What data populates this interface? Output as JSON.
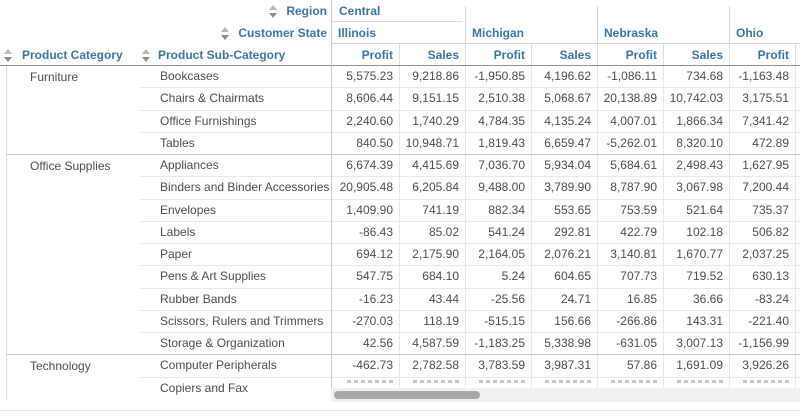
{
  "colors": {
    "header_text": "#3a77a9",
    "body_text": "#4e4e4e",
    "scrollbar_thumb": "#a8a8a8"
  },
  "header": {
    "region_label": "Region",
    "region_value": "Central",
    "customer_state_label": "Customer State",
    "product_category_label": "Product Category",
    "product_subcategory_label": "Product Sub-Category",
    "states": [
      "Illinois",
      "Michigan",
      "Nebraska",
      "Ohio"
    ],
    "measures": [
      "Profit",
      "Sales"
    ]
  },
  "table": {
    "groups": [
      {
        "category": "Furniture",
        "rows": [
          {
            "label": "Bookcases",
            "values": [
              "5,575.23",
              "9,218.86",
              "-1,950.85",
              "4,196.62",
              "-1,086.11",
              "734.68",
              "-1,163.48"
            ]
          },
          {
            "label": "Chairs & Chairmats",
            "values": [
              "8,606.44",
              "9,151.15",
              "2,510.38",
              "5,068.67",
              "20,138.89",
              "10,742.03",
              "3,175.51"
            ]
          },
          {
            "label": "Office Furnishings",
            "values": [
              "2,240.60",
              "1,740.29",
              "4,784.35",
              "4,135.24",
              "4,007.01",
              "1,866.34",
              "7,341.42"
            ]
          },
          {
            "label": "Tables",
            "values": [
              "840.50",
              "10,948.71",
              "1,819.43",
              "6,659.47",
              "-5,262.01",
              "8,320.10",
              "472.89"
            ]
          }
        ]
      },
      {
        "category": "Office Supplies",
        "rows": [
          {
            "label": "Appliances",
            "values": [
              "6,674.39",
              "4,415.69",
              "7,036.70",
              "5,934.04",
              "5,684.61",
              "2,498.43",
              "1,627.95"
            ]
          },
          {
            "label": "Binders and Binder Accessories",
            "values": [
              "20,905.48",
              "6,205.84",
              "9,488.00",
              "3,789.90",
              "8,787.90",
              "3,067.98",
              "7,200.44"
            ]
          },
          {
            "label": "Envelopes",
            "values": [
              "1,409.90",
              "741.19",
              "882.34",
              "553.65",
              "753.59",
              "521.64",
              "735.37"
            ]
          },
          {
            "label": "Labels",
            "values": [
              "-86.43",
              "85.02",
              "541.24",
              "292.81",
              "422.79",
              "102.18",
              "506.82"
            ]
          },
          {
            "label": "Paper",
            "values": [
              "694.12",
              "2,175.90",
              "2,164.05",
              "2,076.21",
              "3,140.81",
              "1,670.77",
              "2,037.25"
            ]
          },
          {
            "label": "Pens & Art Supplies",
            "values": [
              "547.75",
              "684.10",
              "5.24",
              "604.65",
              "707.73",
              "719.52",
              "630.13"
            ]
          },
          {
            "label": "Rubber Bands",
            "values": [
              "-16.23",
              "43.44",
              "-25.56",
              "24.71",
              "16.85",
              "36.66",
              "-83.24"
            ]
          },
          {
            "label": "Scissors, Rulers and Trimmers",
            "values": [
              "-270.03",
              "118.19",
              "-515.15",
              "156.66",
              "-266.86",
              "143.31",
              "-221.40"
            ]
          },
          {
            "label": "Storage & Organization",
            "values": [
              "42.56",
              "4,587.59",
              "-1,183.25",
              "5,338.98",
              "-631.05",
              "3,007.13",
              "-1,156.99"
            ]
          }
        ]
      },
      {
        "category": "Technology",
        "rows": [
          {
            "label": "Computer Peripherals",
            "values": [
              "-462.73",
              "2,782.58",
              "3,783.59",
              "3,987.31",
              "57.86",
              "1,691.09",
              "3,926.26"
            ]
          },
          {
            "label": "Copiers and Fax",
            "values": null
          }
        ]
      }
    ]
  }
}
